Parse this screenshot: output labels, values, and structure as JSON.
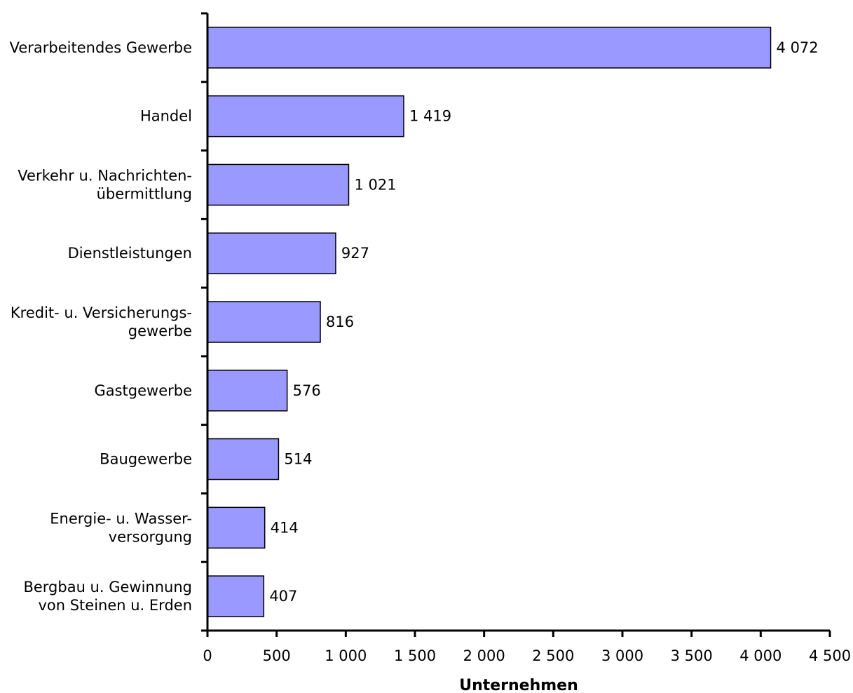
{
  "chart_data": {
    "type": "bar",
    "orientation": "horizontal",
    "categories": [
      [
        "Verarbeitendes Gewerbe"
      ],
      [
        "Handel"
      ],
      [
        "Verkehr u. Nachrichten-",
        "übermittlung"
      ],
      [
        "Dienstleistungen"
      ],
      [
        "Kredit- u. Versicherungs-",
        "gewerbe"
      ],
      [
        "Gastgewerbe"
      ],
      [
        "Baugewerbe"
      ],
      [
        "Energie- u. Wasser-",
        "versorgung"
      ],
      [
        "Bergbau u. Gewinnung",
        "von Steinen u. Erden"
      ]
    ],
    "values": [
      4072,
      1419,
      1021,
      927,
      816,
      576,
      514,
      414,
      407
    ],
    "value_labels": [
      "4 072",
      "1 419",
      "1 021",
      "927",
      "816",
      "576",
      "514",
      "414",
      "407"
    ],
    "xlim": [
      0,
      4500
    ],
    "xticks": [
      0,
      500,
      1000,
      1500,
      2000,
      2500,
      3000,
      3500,
      4000,
      4500
    ],
    "xtick_labels": [
      "0",
      "500",
      "1 000",
      "1 500",
      "2 000",
      "2 500",
      "3 000",
      "3 500",
      "4 000",
      "4 500"
    ],
    "xlabel": "Unternehmen",
    "ylabel": "",
    "title": "",
    "grid": false,
    "legend": "none",
    "bar_color": "#9999ff",
    "bar_edge_color": "#000000"
  }
}
